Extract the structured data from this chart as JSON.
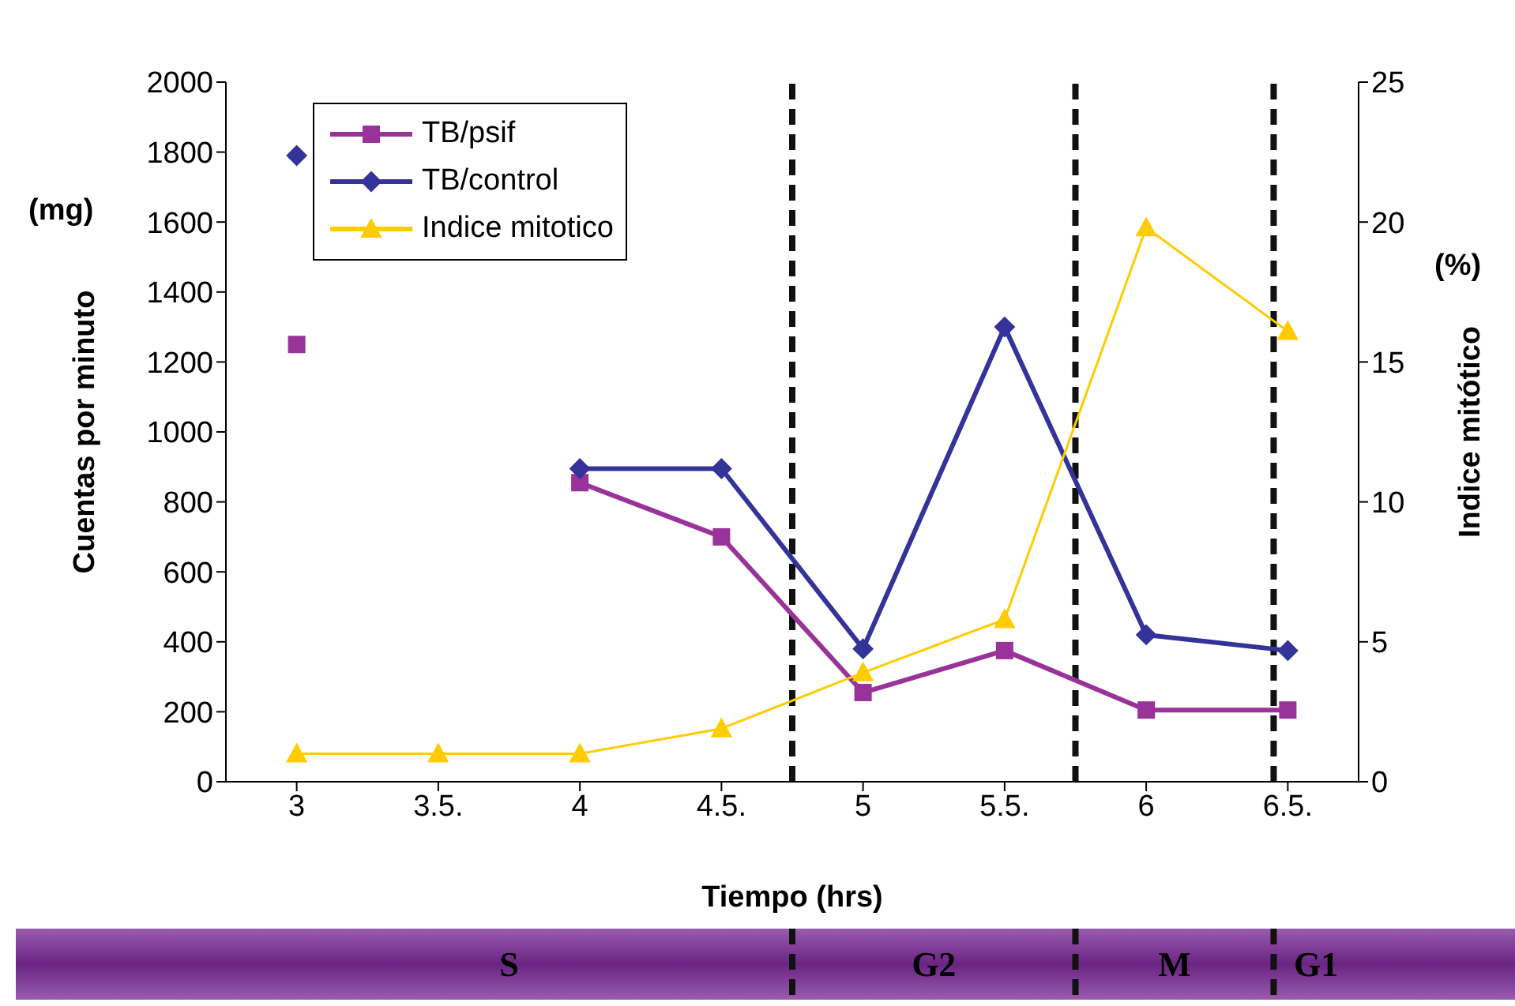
{
  "chart_data": {
    "type": "line",
    "xlabel": "Tiempo (hrs)",
    "ylabel": "Cuentas por minuto",
    "y2label": "Indice mitótico",
    "annotations": [
      "(mg)",
      "(%)",
      "S",
      "G2",
      "M",
      "G1"
    ],
    "x": [
      3,
      3.5,
      4,
      4.5,
      5,
      5.5,
      6,
      6.5
    ],
    "xlim": [
      2.75,
      6.75
    ],
    "xticks": [
      {
        "value": 3,
        "label": "3"
      },
      {
        "value": 3.5,
        "label": "3.5."
      },
      {
        "value": 4,
        "label": "4"
      },
      {
        "value": 4.5,
        "label": "4.5."
      },
      {
        "value": 5,
        "label": "5"
      },
      {
        "value": 5.5,
        "label": "5.5."
      },
      {
        "value": 6,
        "label": "6"
      },
      {
        "value": 6.5,
        "label": "6.5."
      }
    ],
    "ylim": [
      0,
      2000
    ],
    "yticks": [
      0,
      200,
      400,
      600,
      800,
      1000,
      1200,
      1400,
      1600,
      1800,
      2000
    ],
    "y2lim": [
      0,
      25
    ],
    "y2ticks": [
      0,
      5,
      10,
      15,
      20,
      25
    ],
    "series": [
      {
        "name": "TB/psif",
        "color": "#993399",
        "marker": "square",
        "values": [
          1250,
          null,
          855,
          700,
          255,
          375,
          205,
          205
        ]
      },
      {
        "name": "TB/control",
        "color": "#333399",
        "marker": "diamond",
        "values": [
          1790,
          null,
          895,
          895,
          380,
          1300,
          420,
          375
        ]
      },
      {
        "name": "Indice mitotico",
        "color": "#ffcc00",
        "marker": "triangle",
        "axis": "y2",
        "values": [
          1,
          1,
          1,
          1.9,
          3.9,
          5.8,
          19.8,
          16.1
        ]
      }
    ],
    "ref_lines": [
      {
        "axis": "x",
        "value": 4.75,
        "line_style": "dashed",
        "color": "#111111"
      },
      {
        "axis": "x",
        "value": 5.75,
        "line_style": "dashed",
        "color": "#111111"
      },
      {
        "axis": "x",
        "value": 6.45,
        "line_style": "dashed",
        "color": "#111111"
      }
    ],
    "legend": "top left"
  }
}
